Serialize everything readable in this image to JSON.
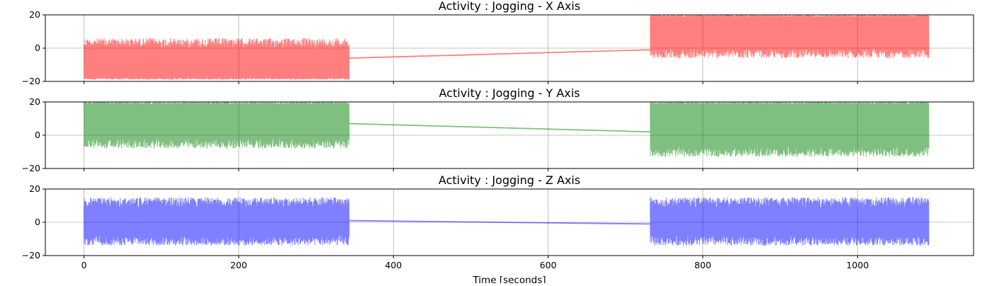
{
  "colors": {
    "x_axis_series": "#ff0000",
    "y_axis_series": "#008000",
    "z_axis_series": "#0000ff",
    "grid": "#b0b0b0",
    "frame": "#000000"
  },
  "chart_data": [
    {
      "type": "line",
      "title": "Activity : Jogging - X Axis",
      "xlim": [
        -50,
        1150
      ],
      "ylim": [
        -20,
        20
      ],
      "xticks": [
        0,
        200,
        400,
        600,
        800,
        1000
      ],
      "yticks": [
        -20,
        0,
        20
      ],
      "xtick_labels_visible": false,
      "grid": true,
      "series_color": "#ff0000",
      "alpha": 0.5,
      "segments": [
        {
          "start": 0,
          "end": 343,
          "env_low": -19,
          "env_high": 6,
          "bias_sign": -1
        },
        {
          "start": 732,
          "end": 1092,
          "env_low": -6,
          "env_high": 20,
          "bias_sign": 1
        }
      ],
      "bridge": {
        "x": [
          343,
          732
        ],
        "y": [
          -6,
          -1
        ]
      }
    },
    {
      "type": "line",
      "title": "Activity : Jogging - Y Axis",
      "xlim": [
        -50,
        1150
      ],
      "ylim": [
        -20,
        20
      ],
      "xticks": [
        0,
        200,
        400,
        600,
        800,
        1000
      ],
      "yticks": [
        -20,
        0,
        20
      ],
      "xtick_labels_visible": false,
      "grid": true,
      "series_color": "#008000",
      "alpha": 0.5,
      "segments": [
        {
          "start": 0,
          "end": 343,
          "env_low": -8,
          "env_high": 20,
          "bias_sign": 1
        },
        {
          "start": 732,
          "end": 1092,
          "env_low": -13,
          "env_high": 20,
          "bias_sign": 1
        }
      ],
      "bridge": {
        "x": [
          343,
          732
        ],
        "y": [
          7,
          2
        ]
      }
    },
    {
      "type": "line",
      "title": "Activity : Jogging - Z Axis",
      "xlim": [
        -50,
        1150
      ],
      "ylim": [
        -20,
        20
      ],
      "xticks": [
        0,
        200,
        400,
        600,
        800,
        1000
      ],
      "yticks": [
        -20,
        0,
        20
      ],
      "xtick_labels_visible": true,
      "xlabel": "Time [seconds]",
      "grid": true,
      "series_color": "#0000ff",
      "alpha": 0.5,
      "segments": [
        {
          "start": 0,
          "end": 343,
          "env_low": -14,
          "env_high": 15,
          "bias_sign": 0
        },
        {
          "start": 732,
          "end": 1092,
          "env_low": -14,
          "env_high": 15,
          "bias_sign": 0
        }
      ],
      "bridge": {
        "x": [
          343,
          732
        ],
        "y": [
          1,
          -1
        ]
      }
    }
  ]
}
